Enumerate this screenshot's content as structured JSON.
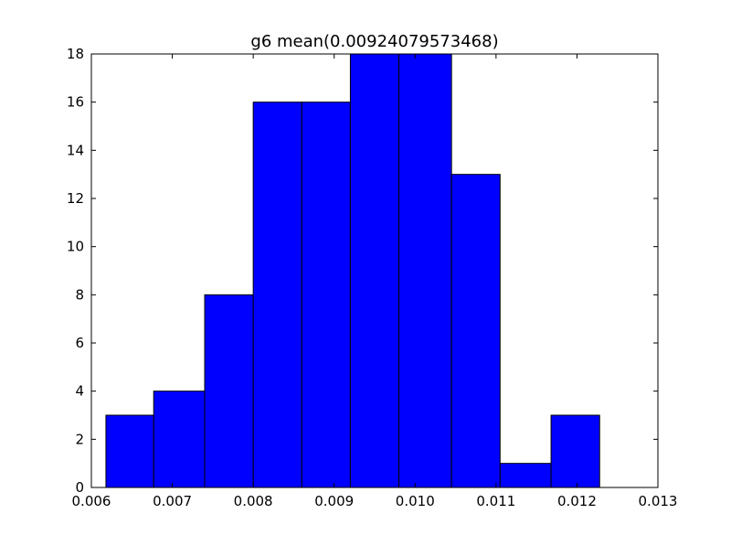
{
  "chart_data": {
    "type": "bar",
    "title": "g6 mean(0.00924079573468)",
    "xlabel": "",
    "ylabel": "",
    "xlim": [
      0.006,
      0.013
    ],
    "ylim": [
      0,
      18
    ],
    "grid": false,
    "bar_color": "#0000ff",
    "edge_color": "#000000",
    "bins": [
      {
        "x0": 0.00618,
        "x1": 0.00677,
        "count": 3
      },
      {
        "x0": 0.00677,
        "x1": 0.0074,
        "count": 4
      },
      {
        "x0": 0.0074,
        "x1": 0.008,
        "count": 8
      },
      {
        "x0": 0.008,
        "x1": 0.0086,
        "count": 16
      },
      {
        "x0": 0.0086,
        "x1": 0.0092,
        "count": 16
      },
      {
        "x0": 0.0092,
        "x1": 0.0098,
        "count": 18
      },
      {
        "x0": 0.0098,
        "x1": 0.01045,
        "count": 18
      },
      {
        "x0": 0.01045,
        "x1": 0.01105,
        "count": 13
      },
      {
        "x0": 0.01105,
        "x1": 0.01168,
        "count": 1
      },
      {
        "x0": 0.01168,
        "x1": 0.01228,
        "count": 3
      }
    ],
    "x_ticks": [
      {
        "value": 0.006,
        "label": "0.006"
      },
      {
        "value": 0.007,
        "label": "0.007"
      },
      {
        "value": 0.008,
        "label": "0.008"
      },
      {
        "value": 0.009,
        "label": "0.009"
      },
      {
        "value": 0.01,
        "label": "0.010"
      },
      {
        "value": 0.011,
        "label": "0.011"
      },
      {
        "value": 0.012,
        "label": "0.012"
      },
      {
        "value": 0.013,
        "label": "0.013"
      }
    ],
    "y_ticks": [
      {
        "value": 0,
        "label": "0"
      },
      {
        "value": 2,
        "label": "2"
      },
      {
        "value": 4,
        "label": "4"
      },
      {
        "value": 6,
        "label": "6"
      },
      {
        "value": 8,
        "label": "8"
      },
      {
        "value": 10,
        "label": "10"
      },
      {
        "value": 12,
        "label": "12"
      },
      {
        "value": 14,
        "label": "14"
      },
      {
        "value": 16,
        "label": "16"
      },
      {
        "value": 18,
        "label": "18"
      }
    ]
  }
}
